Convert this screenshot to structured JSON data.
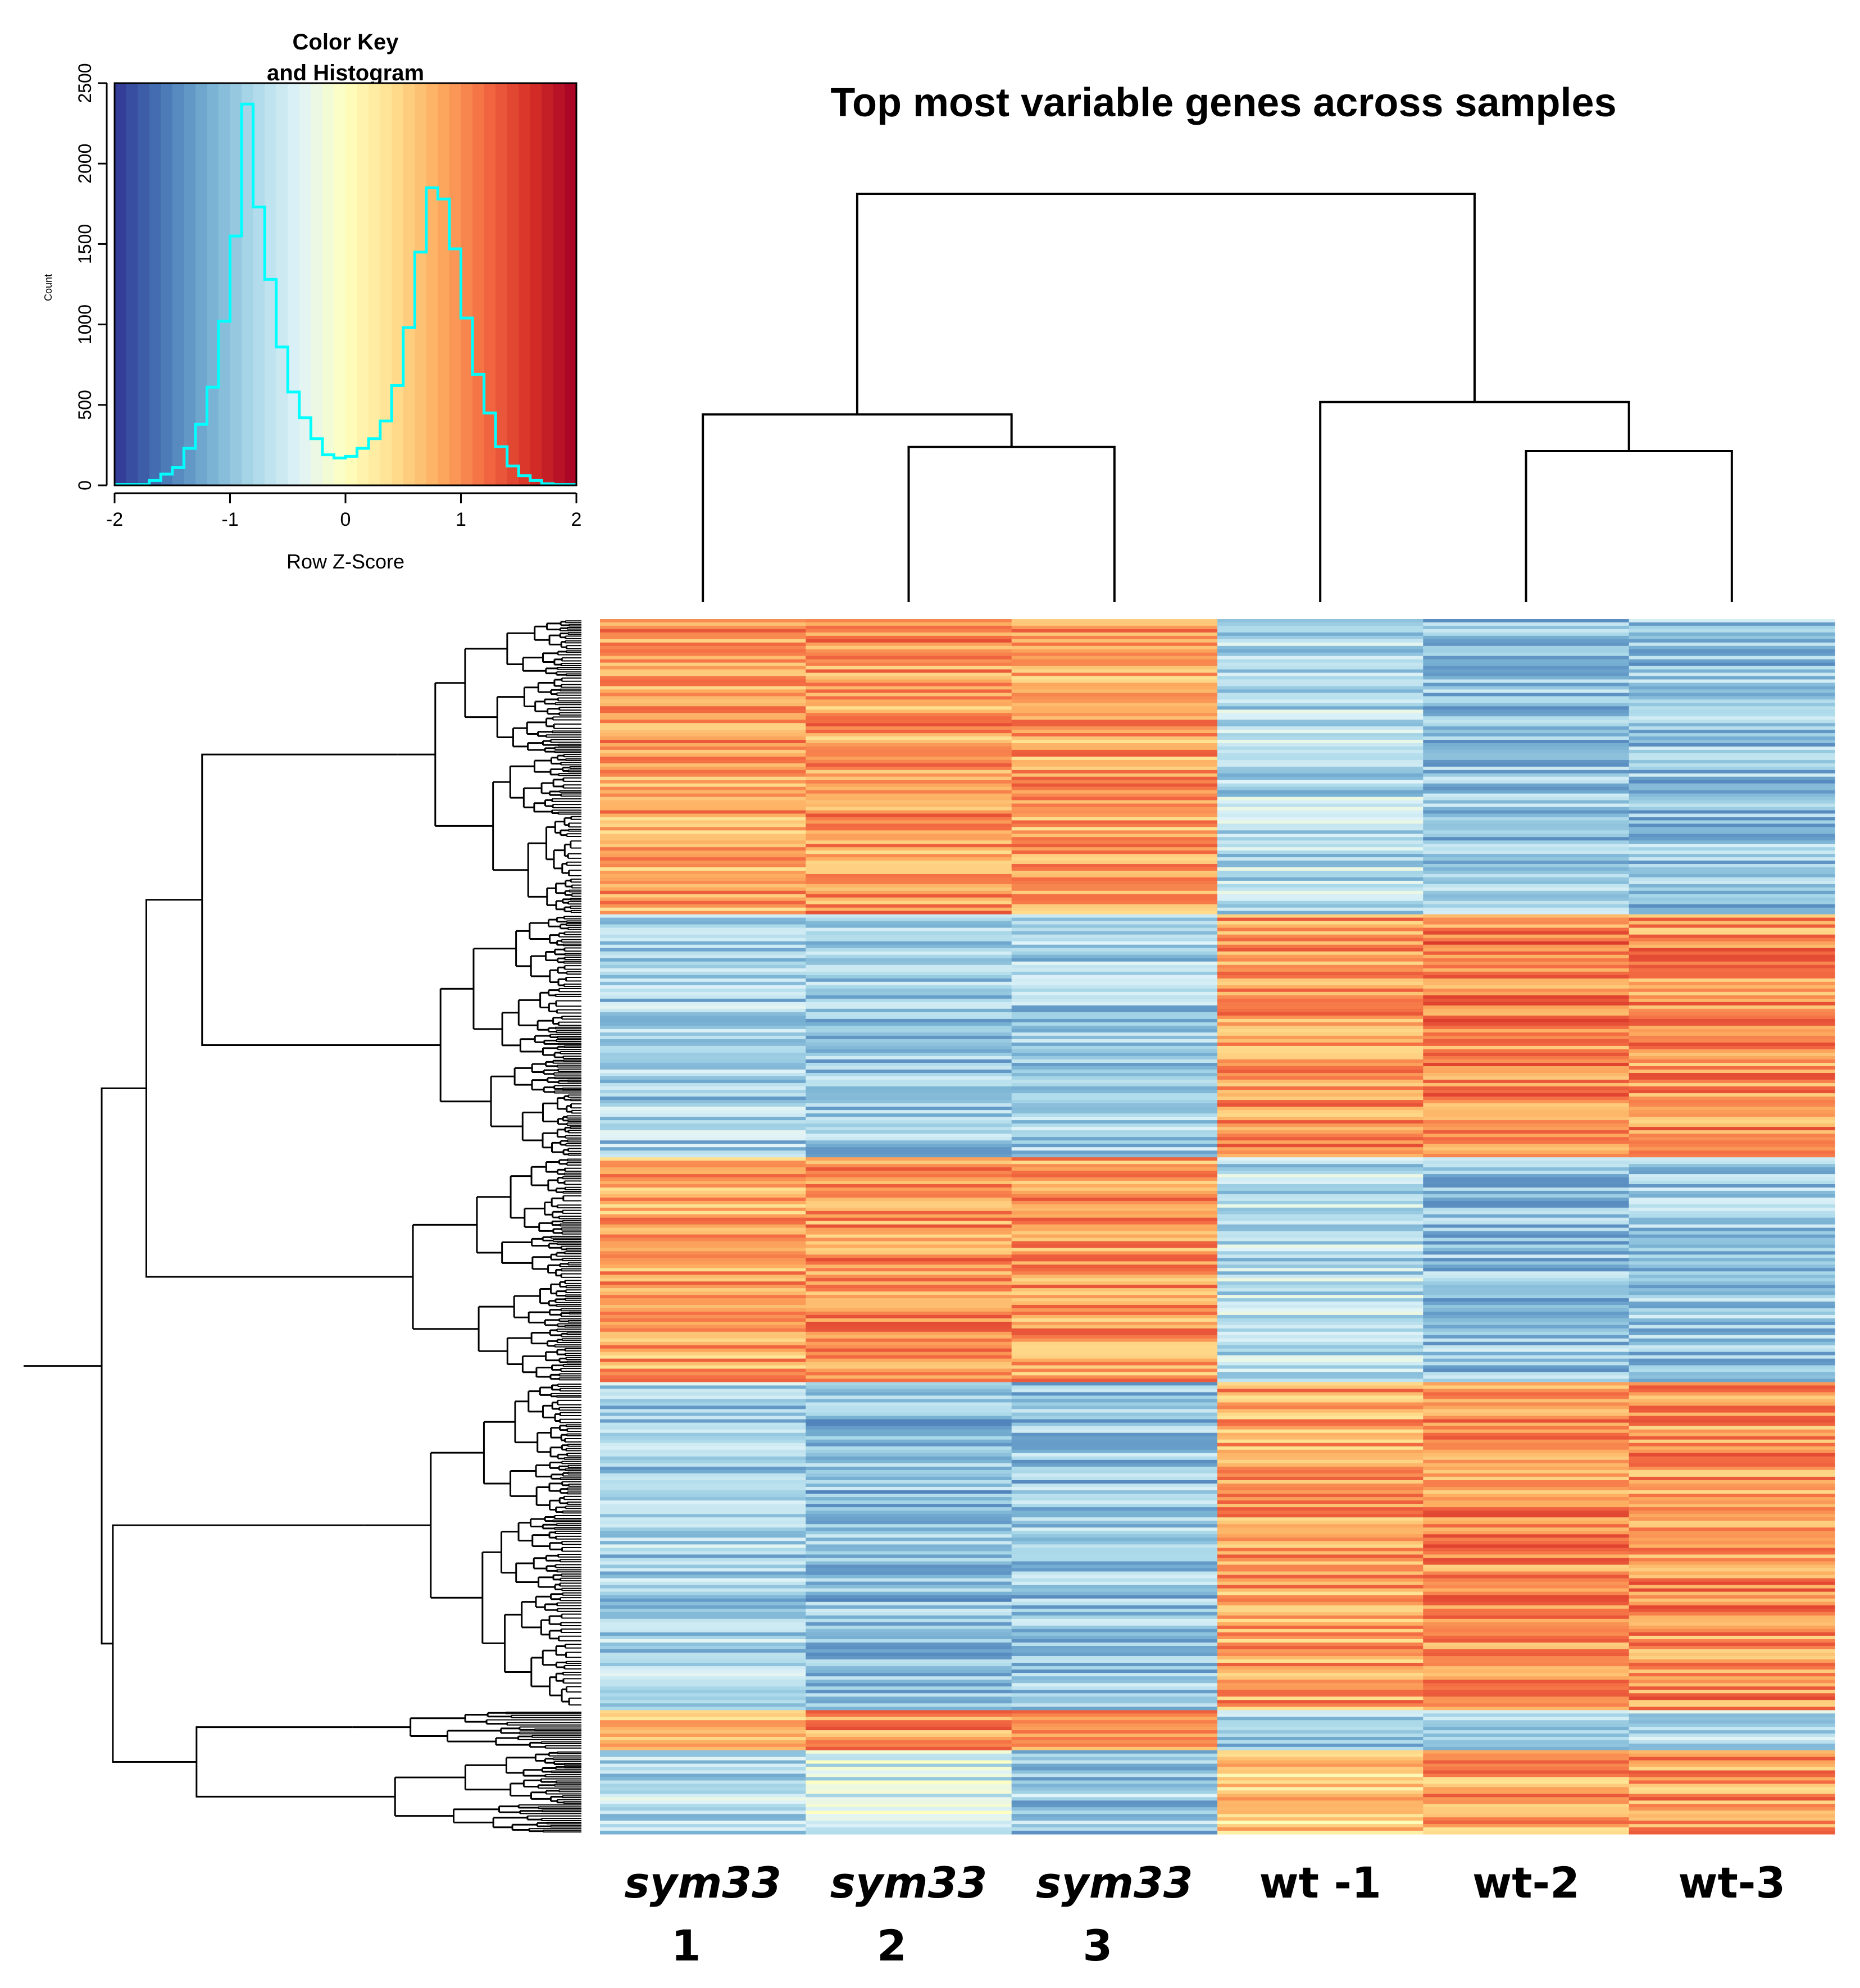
{
  "chart_data": [
    {
      "type": "histogram",
      "role": "color-key",
      "title_line1": "Color Key",
      "title_line2": "and Histogram",
      "xlabel": "Row Z-Score",
      "ylabel": "Count",
      "xlim": [
        -2,
        2
      ],
      "ylim": [
        0,
        2500
      ],
      "xticks": [
        -2,
        -1,
        0,
        1,
        2
      ],
      "yticks": [
        0,
        500,
        1000,
        1500,
        2000,
        2500
      ],
      "xtick_labels": [
        "-2",
        "-1",
        "0",
        "1",
        "2"
      ],
      "ytick_labels": [
        "0",
        "500",
        "1000",
        "1500",
        "2000",
        "2500"
      ],
      "bin_width": 0.1,
      "bin_start": -2.0,
      "counts": [
        5,
        5,
        5,
        30,
        70,
        110,
        230,
        380,
        610,
        1020,
        1550,
        2370,
        1730,
        1280,
        860,
        580,
        420,
        290,
        190,
        170,
        180,
        230,
        290,
        400,
        620,
        980,
        1450,
        1850,
        1780,
        1470,
        1040,
        690,
        450,
        240,
        120,
        60,
        30,
        10,
        5,
        5
      ],
      "palette": [
        "#313695",
        "#4575b4",
        "#74add1",
        "#abd9e9",
        "#e0f3f8",
        "#ffffbf",
        "#fee090",
        "#fdae61",
        "#f46d43",
        "#d73027",
        "#a50026"
      ],
      "line_color": "#00ffff"
    },
    {
      "type": "heatmap",
      "title": "Top most variable genes across samples",
      "samples": [
        {
          "line1": "sym33",
          "line2": "1",
          "italic": true
        },
        {
          "line1": "sym33",
          "line2": "2",
          "italic": true
        },
        {
          "line1": "sym33",
          "line2": "3",
          "italic": true
        },
        {
          "line1": "wt -1",
          "line2": "",
          "italic": false
        },
        {
          "line1": "wt-2",
          "line2": "",
          "italic": false
        },
        {
          "line1": "wt-3",
          "line2": "",
          "italic": false
        }
      ],
      "column_dendrogram": {
        "clusters": [
          {
            "members": [
              1,
              2
            ],
            "height": 0.38
          },
          {
            "members": [
              0,
              1,
              2
            ],
            "height": 0.46
          },
          {
            "members": [
              4,
              5
            ],
            "height": 0.37
          },
          {
            "members": [
              3,
              4,
              5
            ],
            "height": 0.49
          },
          {
            "members": [
              0,
              1,
              2,
              3,
              4,
              5
            ],
            "height": 1.0
          }
        ]
      },
      "row_blocks": [
        {
          "fraction": 0.243,
          "zscores": [
            0.85,
            0.9,
            0.85,
            -0.75,
            -0.95,
            -0.95
          ]
        },
        {
          "fraction": 0.2,
          "zscores": [
            -0.85,
            -0.95,
            -0.85,
            0.95,
            1.05,
            0.95
          ]
        },
        {
          "fraction": 0.185,
          "zscores": [
            0.85,
            0.95,
            0.9,
            -0.7,
            -0.95,
            -0.95
          ]
        },
        {
          "fraction": 0.27,
          "zscores": [
            -0.85,
            -1.0,
            -0.95,
            0.85,
            1.0,
            0.95
          ]
        },
        {
          "fraction": 0.033,
          "zscores": [
            0.8,
            0.95,
            0.9,
            -0.85,
            -0.75,
            -0.7
          ]
        },
        {
          "fraction": 0.069,
          "zscores": [
            -0.75,
            -0.5,
            -0.9,
            0.5,
            0.85,
            0.9
          ]
        }
      ],
      "row_dendrogram": {
        "cluster_merge_heights": [
          0.33,
          0.41,
          0.55,
          0.6,
          0.68,
          0.69,
          0.78,
          0.84,
          0.86,
          1.0
        ]
      }
    }
  ]
}
